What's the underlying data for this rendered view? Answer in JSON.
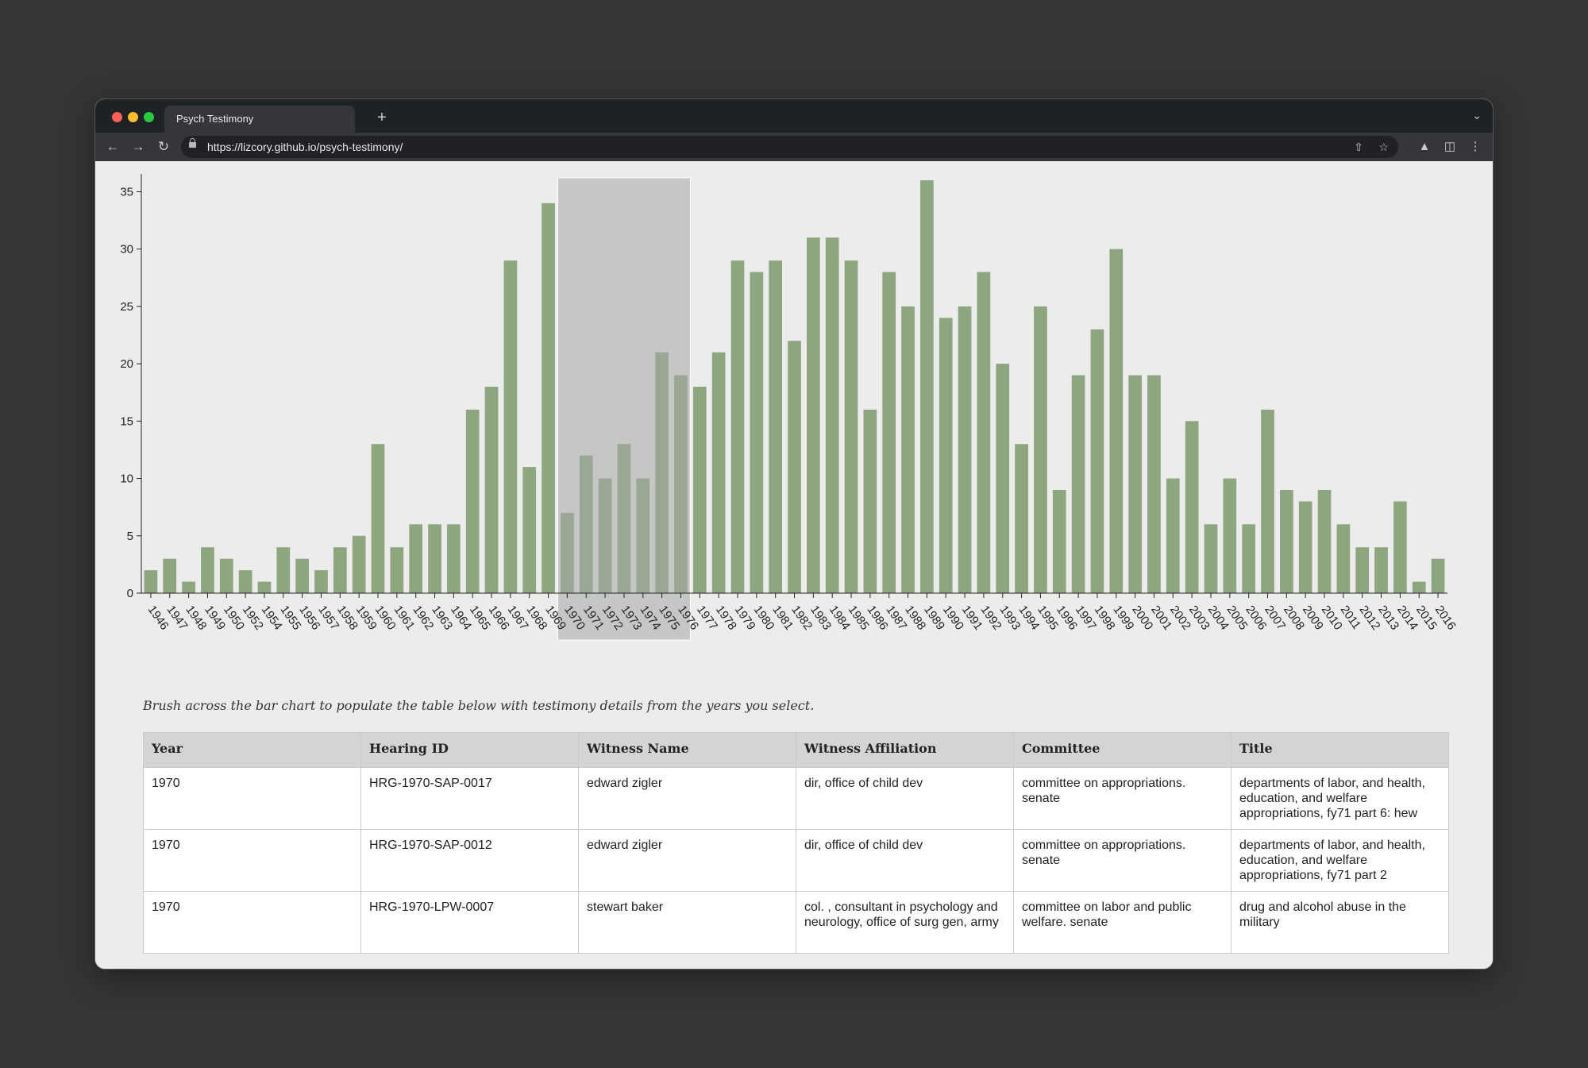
{
  "browser": {
    "tab_title": "Psych Testimony",
    "new_tab_label": "+",
    "url": "https://lizcory.github.io/psych-testimony/"
  },
  "page": {
    "caption": "Brush across the bar chart to populate the table below with testimony details from the years you select.",
    "table": {
      "columns": [
        "Year",
        "Hearing ID",
        "Witness Name",
        "Witness Affiliation",
        "Committee",
        "Title"
      ],
      "rows": [
        {
          "year": "1970",
          "hearing_id": "HRG-1970-SAP-0017",
          "witness_name": "edward zigler",
          "witness_affiliation": "dir, office of child dev",
          "committee": "committee on appropriations. senate",
          "title": "departments of labor, and health, education, and welfare appropriations, fy71 part 6: hew"
        },
        {
          "year": "1970",
          "hearing_id": "HRG-1970-SAP-0012",
          "witness_name": "edward zigler",
          "witness_affiliation": "dir, office of child dev",
          "committee": "committee on appropriations. senate",
          "title": "departments of labor, and health, education, and welfare appropriations, fy71 part 2"
        },
        {
          "year": "1970",
          "hearing_id": "HRG-1970-LPW-0007",
          "witness_name": "stewart baker",
          "witness_affiliation": "col. , consultant in psychology and neurology, office of surg gen, army",
          "committee": "committee on labor and public welfare. senate",
          "title": "drug and alcohol abuse in the military"
        }
      ]
    }
  },
  "chart_data": {
    "type": "bar",
    "title": "",
    "xlabel": "",
    "ylabel": "",
    "ylim": [
      0,
      36
    ],
    "yticks": [
      0,
      5,
      10,
      15,
      20,
      25,
      30,
      35
    ],
    "bar_color": "#8da67f",
    "brush_color": "#a8a8a8",
    "brush_selection": [
      "1970",
      "1976"
    ],
    "categories": [
      "1946",
      "1947",
      "1948",
      "1949",
      "1950",
      "1952",
      "1954",
      "1955",
      "1956",
      "1957",
      "1958",
      "1959",
      "1960",
      "1961",
      "1962",
      "1963",
      "1964",
      "1965",
      "1966",
      "1967",
      "1968",
      "1969",
      "1970",
      "1971",
      "1972",
      "1973",
      "1974",
      "1975",
      "1976",
      "1977",
      "1978",
      "1979",
      "1980",
      "1981",
      "1982",
      "1983",
      "1984",
      "1985",
      "1986",
      "1987",
      "1988",
      "1989",
      "1990",
      "1991",
      "1992",
      "1993",
      "1994",
      "1995",
      "1996",
      "1997",
      "1998",
      "1999",
      "2000",
      "2001",
      "2002",
      "2003",
      "2004",
      "2005",
      "2006",
      "2007",
      "2008",
      "2009",
      "2010",
      "2011",
      "2012",
      "2013",
      "2014",
      "2015",
      "2016"
    ],
    "values": [
      2,
      3,
      1,
      4,
      3,
      2,
      1,
      4,
      3,
      2,
      4,
      5,
      13,
      4,
      6,
      6,
      6,
      16,
      18,
      29,
      11,
      34,
      7,
      12,
      10,
      13,
      10,
      21,
      19,
      18,
      21,
      29,
      28,
      29,
      22,
      31,
      31,
      29,
      16,
      28,
      25,
      36,
      24,
      25,
      28,
      20,
      13,
      25,
      9,
      19,
      23,
      30,
      19,
      19,
      10,
      15,
      6,
      10,
      6,
      16,
      9,
      8,
      9,
      6,
      4,
      4,
      8,
      1,
      3
    ]
  }
}
